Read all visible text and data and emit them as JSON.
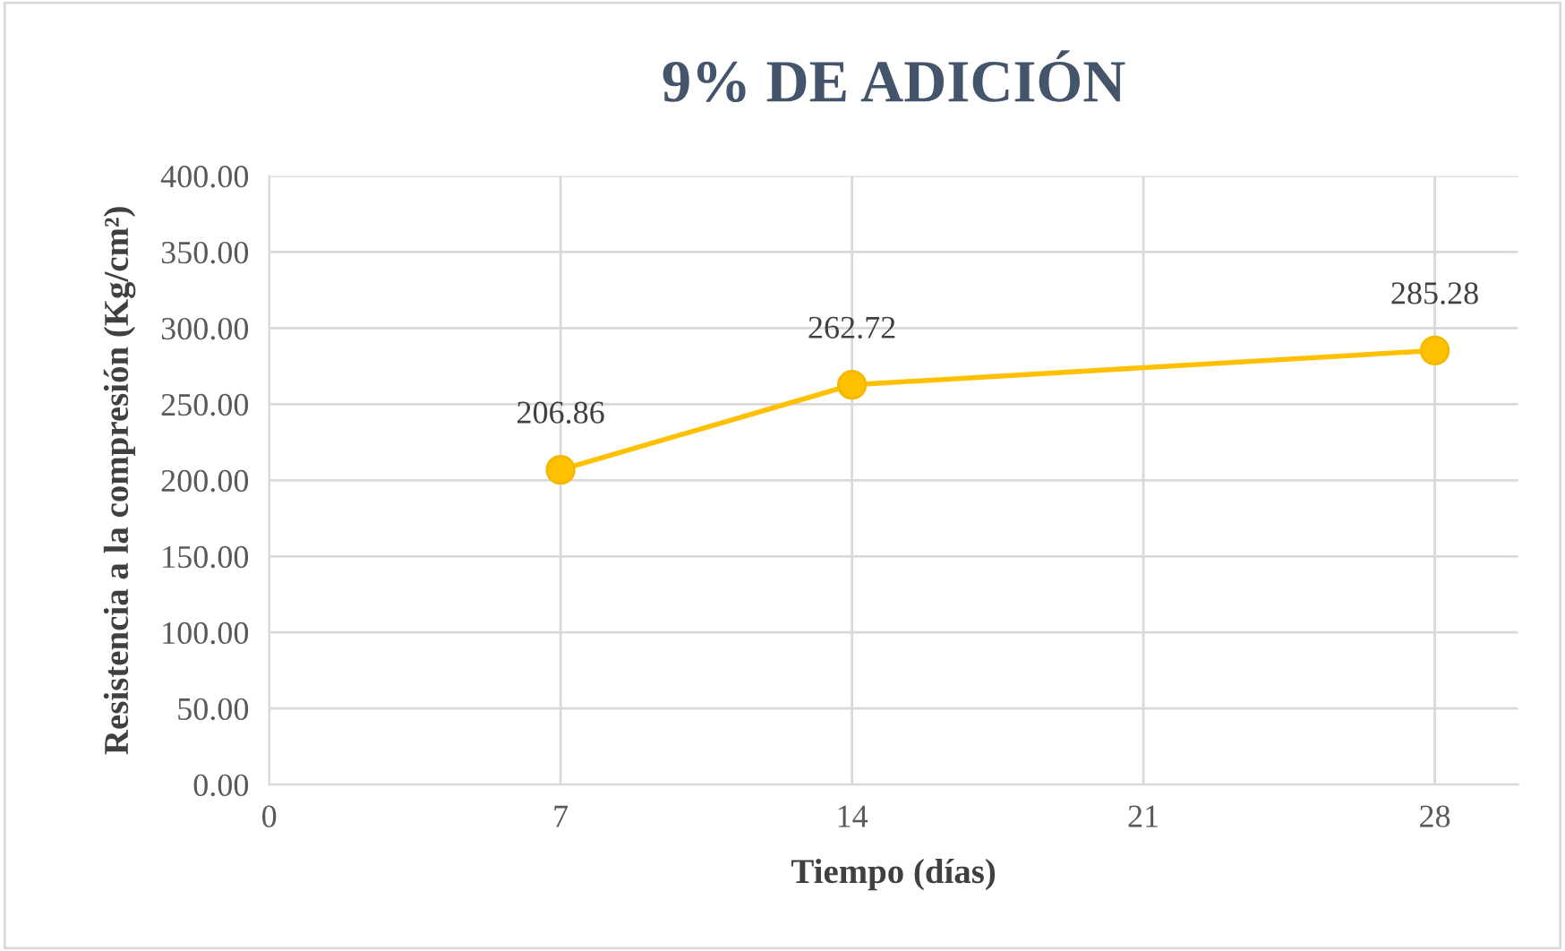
{
  "chart_data": {
    "type": "line",
    "title": "9% DE ADICIÓN",
    "xlabel": "Tiempo (días)",
    "ylabel": "Resistencia a la compresión (Kg/cm²)",
    "x": [
      7,
      14,
      28
    ],
    "series": [
      {
        "color": "#ffc000",
        "values": [
          206.86,
          262.72,
          285.28
        ]
      }
    ],
    "xlim": [
      0,
      30
    ],
    "xticks": [
      0,
      7,
      14,
      21,
      28
    ],
    "ylim": [
      0,
      400
    ],
    "yticks": [
      {
        "value": 0,
        "label": "0.00"
      },
      {
        "value": 50,
        "label": "50.00"
      },
      {
        "value": 100,
        "label": "100.00"
      },
      {
        "value": 150,
        "label": "150.00"
      },
      {
        "value": 200,
        "label": "200.00"
      },
      {
        "value": 250,
        "label": "250.00"
      },
      {
        "value": 300,
        "label": "300.00"
      },
      {
        "value": 350,
        "label": "350.00"
      },
      {
        "value": 400,
        "label": "400.00"
      }
    ],
    "grid": true,
    "marker": "circle",
    "line_style": "solid",
    "data_labels": true,
    "legend": false
  }
}
